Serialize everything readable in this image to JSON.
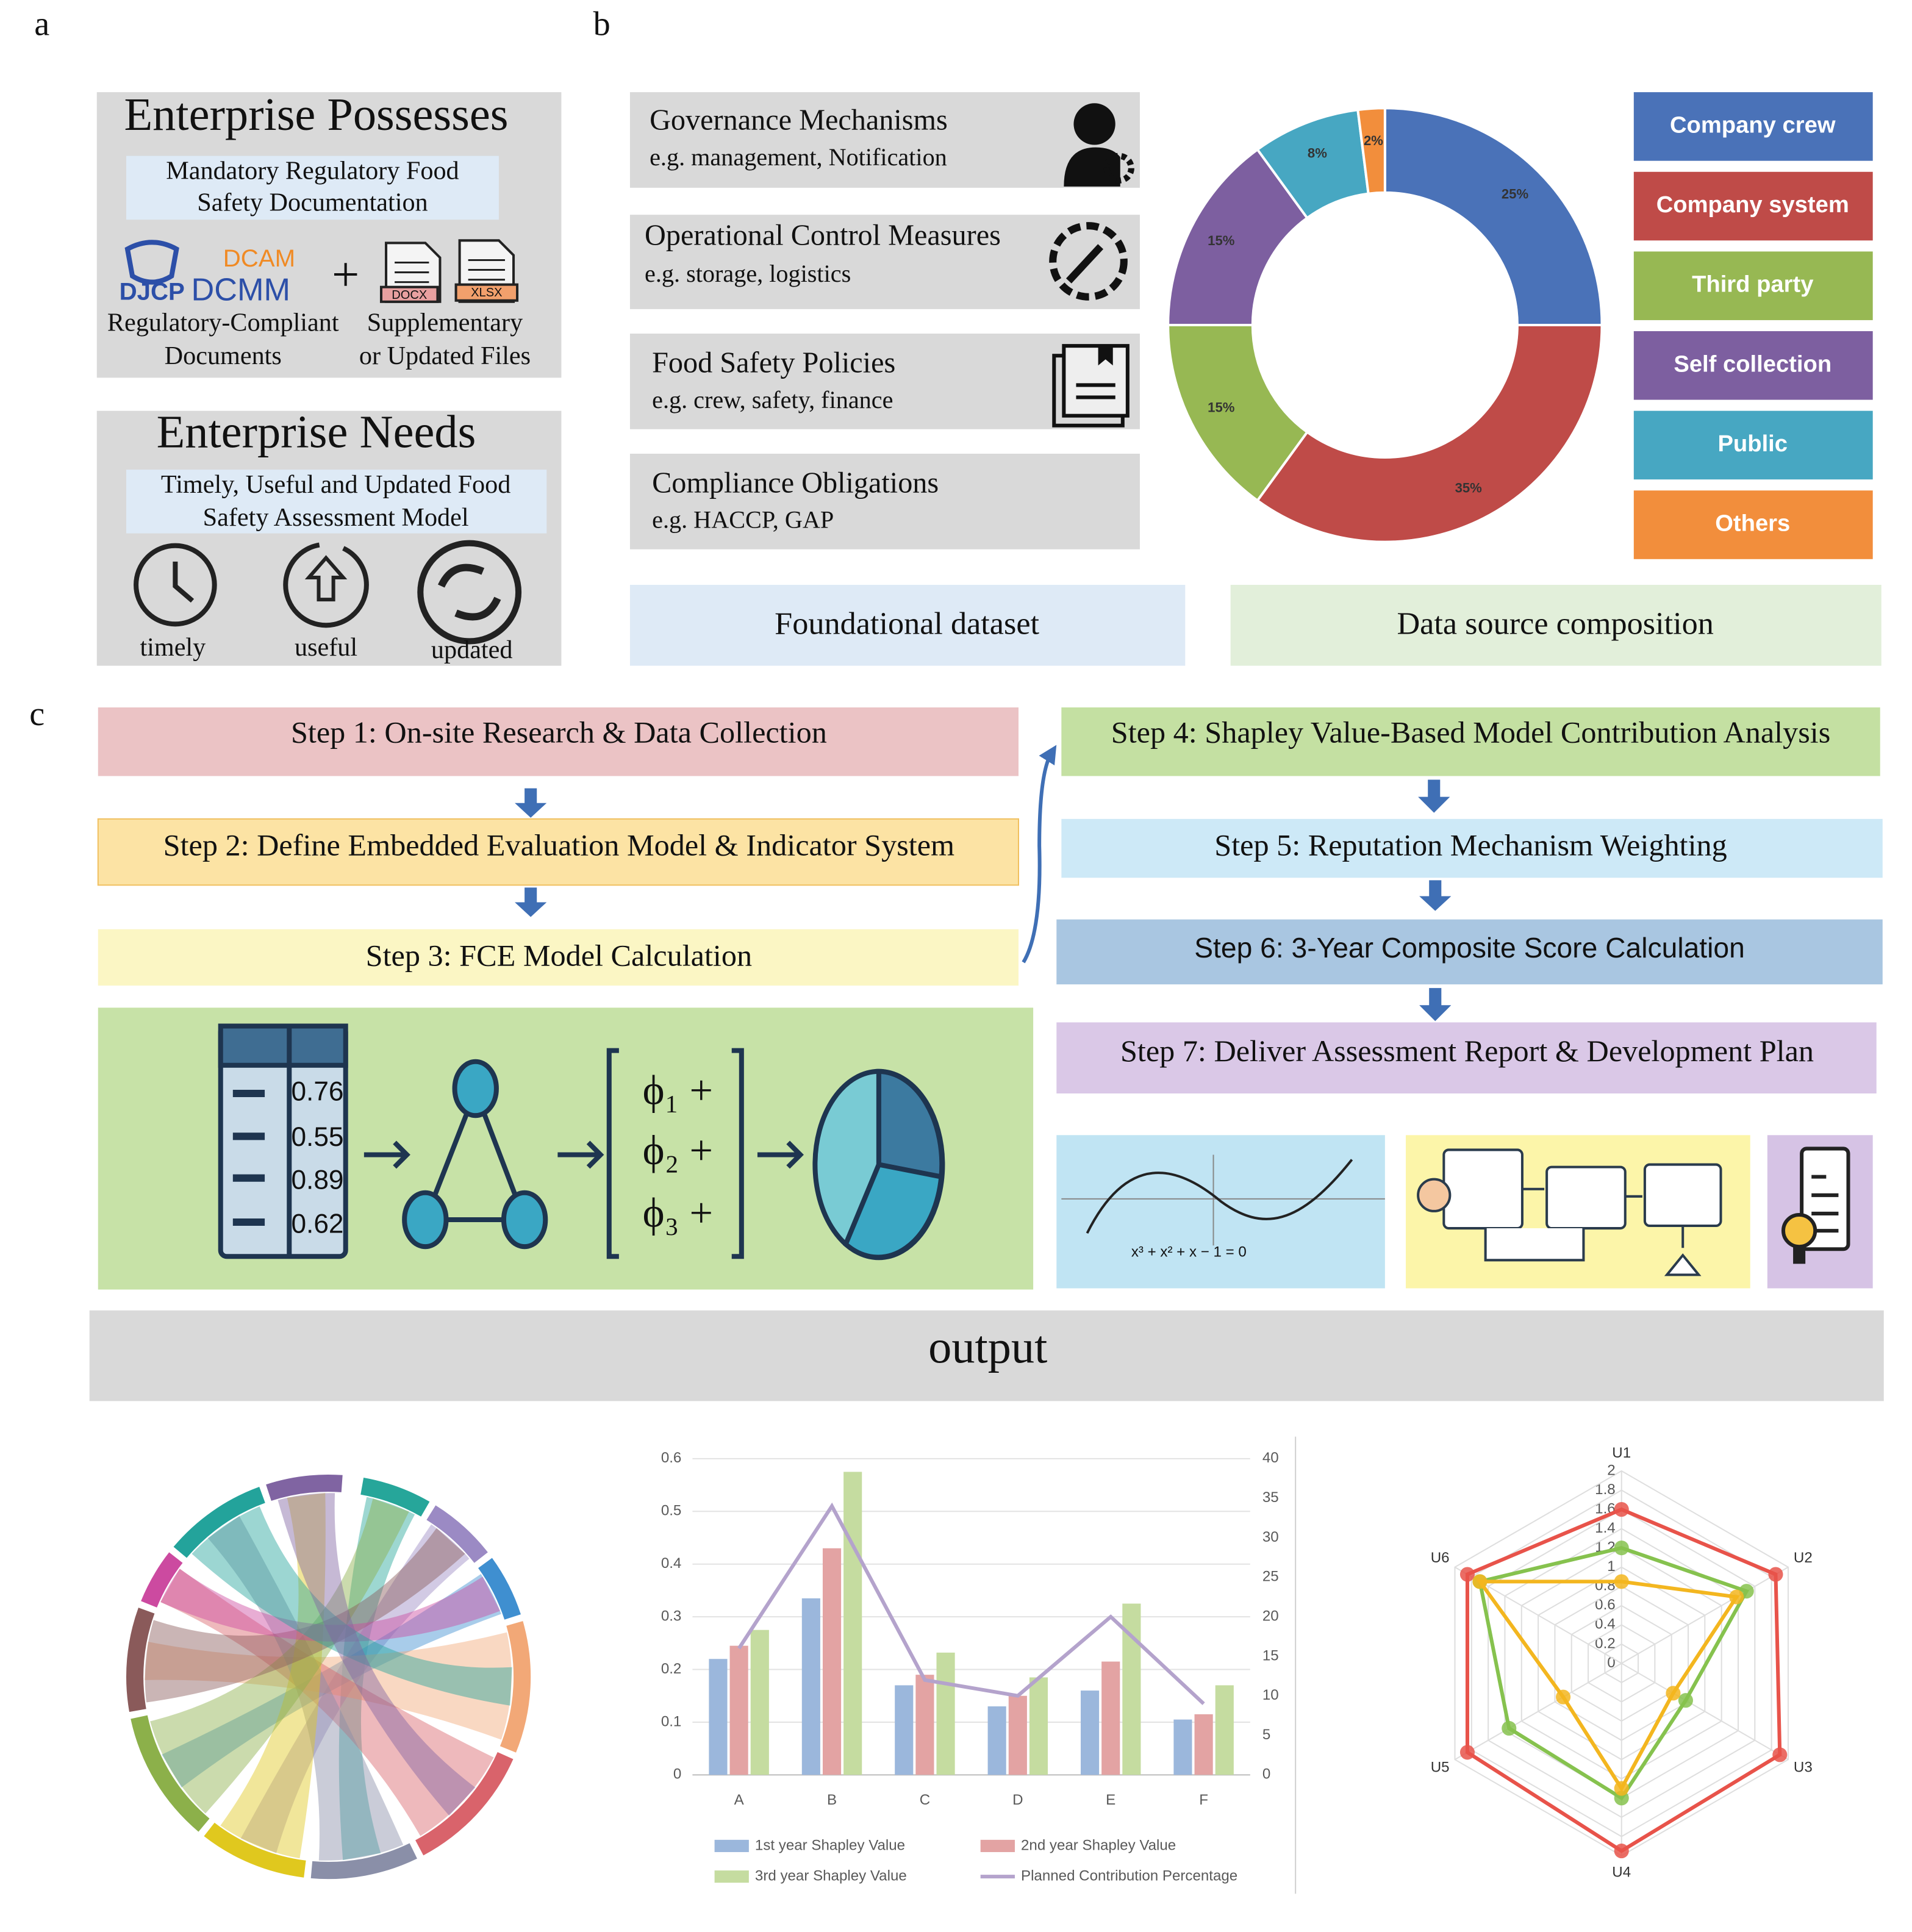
{
  "panel_labels": [
    "a",
    "b",
    "c"
  ],
  "enterprise_possesses": {
    "title": "Enterprise Possesses",
    "subtitle_lines": [
      "Mandatory Regulatory Food",
      "Safety Documentation"
    ],
    "logos": [
      "DJCP",
      "DCAM",
      "DCMM"
    ],
    "file_types": [
      "DOCX",
      "XLSX"
    ],
    "captions": [
      [
        "Regulatory-Compliant",
        "Documents"
      ],
      [
        "Supplementary",
        "or Updated Files"
      ]
    ]
  },
  "enterprise_needs": {
    "title": "Enterprise Needs",
    "subtitle_lines": [
      "Timely, Useful and Updated Food",
      "Safety Assessment Model"
    ],
    "icon_labels": [
      "timely",
      "useful",
      "updated"
    ]
  },
  "foundational_dataset": {
    "label": "Foundational dataset",
    "items": [
      {
        "title": "Governance Mechanisms",
        "example": "e.g.  management, Notification"
      },
      {
        "title": "Operational Control Measures",
        "example": "e.g.  storage, logistics"
      },
      {
        "title": "Food Safety Policies",
        "example": "e.g.  crew, safety,  finance"
      },
      {
        "title": "Compliance Obligations",
        "example": "e.g.  HACCP, GAP"
      }
    ]
  },
  "data_source_label": "Data source composition",
  "steps": [
    "Step 1: On-site Research & Data Collection",
    "Step 2: Define Embedded Evaluation Model & Indicator System",
    "Step 3: FCE Model Calculation",
    "Step 4: Shapley Value-Based Model Contribution Analysis",
    "Step 5: Reputation Mechanism Weighting",
    "Step 6: 3-Year Composite Score Calculation",
    "Step 7: Deliver Assessment Report & Development Plan"
  ],
  "illustration": {
    "table_values": [
      0.76,
      0.55,
      0.89,
      0.62
    ],
    "terms": [
      "ϕ₁ +",
      "ϕ₂ +",
      "ϕ₃ +"
    ],
    "formula": "x³ + x² + x − 1 = 0"
  },
  "output_label": "output",
  "chart_data": [
    {
      "type": "donut",
      "categories": [
        "Company crew",
        "Company system",
        "Third party",
        "Self collection",
        "Public",
        "Others"
      ],
      "values": [
        25,
        35,
        15,
        15,
        8,
        2
      ],
      "value_labels": [
        "25%",
        "35%",
        "15%",
        "15%",
        "8%",
        "2%"
      ],
      "colors": [
        "#4a72b8",
        "#bf4b48",
        "#97b853",
        "#7d5fa0",
        "#47a7c2",
        "#f28e3c"
      ],
      "legend": "right"
    },
    {
      "type": "bar",
      "categories": [
        "A",
        "B",
        "C",
        "D",
        "E",
        "F"
      ],
      "series": [
        {
          "name": "1st year Shapley Value",
          "color": "#9bb7dc",
          "values": [
            0.22,
            0.335,
            0.17,
            0.13,
            0.16,
            0.105
          ]
        },
        {
          "name": "2nd year Shapley Value",
          "color": "#e3a3a3",
          "values": [
            0.245,
            0.43,
            0.19,
            0.15,
            0.215,
            0.115
          ]
        },
        {
          "name": "3rd year Shapley Value",
          "color": "#c5dca0",
          "values": [
            0.275,
            0.575,
            0.232,
            0.185,
            0.325,
            0.17
          ]
        },
        {
          "name": "Planned Contribution Percentage",
          "type": "line",
          "axis": "y2",
          "color": "#b4a3cc",
          "values": [
            16,
            34,
            12,
            10,
            20,
            9
          ]
        }
      ],
      "ylim": [
        0,
        0.6
      ],
      "yticks": [
        0,
        0.1,
        0.2,
        0.3,
        0.4,
        0.5,
        0.6
      ],
      "y2lim": [
        0,
        40
      ],
      "y2ticks": [
        0,
        5,
        10,
        15,
        20,
        25,
        30,
        35,
        40
      ],
      "grid": true,
      "legend": "bottom"
    },
    {
      "type": "radar",
      "categories": [
        "U1",
        "U2",
        "U3",
        "U4",
        "U5",
        "U6"
      ],
      "rlim": [
        0,
        2
      ],
      "rticks": [
        0,
        0.2,
        0.4,
        0.6,
        0.8,
        1,
        1.2,
        1.4,
        1.6,
        1.8,
        2
      ],
      "series": [
        {
          "color": "#e8534a",
          "values": [
            1.6,
            1.85,
            1.9,
            1.95,
            1.85,
            1.85
          ]
        },
        {
          "color": "#86c24e",
          "values": [
            1.2,
            1.5,
            0.77,
            1.4,
            1.35,
            1.7
          ]
        },
        {
          "color": "#f3b61f",
          "values": [
            0.85,
            1.38,
            0.62,
            1.3,
            0.7,
            1.7
          ]
        }
      ]
    }
  ]
}
